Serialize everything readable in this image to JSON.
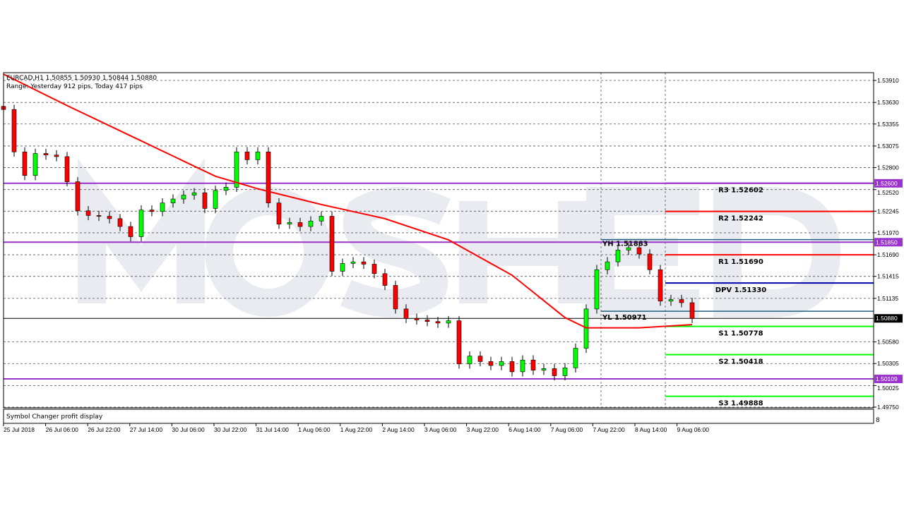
{
  "header": {
    "symbol_line": "EURCAD,H1  1.50855 1.50930 1.50844 1.50880",
    "range_line": "Range: Yesterday 912 pips, Today 417 pips"
  },
  "watermark": "MOSHED",
  "indicator_panel": {
    "label": "Symbol Changer profit display",
    "axis_mark": "8"
  },
  "colors": {
    "bull": "#00ff00",
    "bear": "#ff0000",
    "ma": "#ff0000",
    "key_level": "#9933cc",
    "resistance": "#ff0000",
    "support": "#00ff00",
    "pivot": "#0000aa",
    "yesterday": "#1f5f80",
    "current": "#000000"
  },
  "chart_data": {
    "type": "candlestick",
    "symbol": "EURCAD",
    "timeframe": "H1",
    "ylim": [
      1.4975,
      1.5391
    ],
    "grid": true,
    "y_ticks": [
      "1.53910",
      "1.53630",
      "1.53355",
      "1.53075",
      "1.52800",
      "1.52520",
      "1.52245",
      "1.51970",
      "1.51690",
      "1.51415",
      "1.51135",
      "1.50580",
      "1.50305",
      "1.50025",
      "1.49750"
    ],
    "x_ticks": [
      "25 Jul 2018",
      "26 Jul 06:00",
      "26 Jul 22:00",
      "27 Jul 14:00",
      "30 Jul 06:00",
      "30 Jul 22:00",
      "31 Jul 14:00",
      "1 Aug 06:00",
      "1 Aug 22:00",
      "2 Aug 14:00",
      "3 Aug 06:00",
      "3 Aug 22:00",
      "6 Aug 14:00",
      "7 Aug 06:00",
      "7 Aug 22:00",
      "8 Aug 14:00",
      "9 Aug 06:00"
    ],
    "closes": [
      1.5354,
      1.53,
      1.527,
      1.5298,
      1.5296,
      1.5294,
      1.5262,
      1.5225,
      1.5219,
      1.5218,
      1.5215,
      1.5205,
      1.5192,
      1.5226,
      1.5224,
      1.5235,
      1.524,
      1.5245,
      1.5248,
      1.5228,
      1.5251,
      1.5255,
      1.53,
      1.529,
      1.53,
      1.5235,
      1.5208,
      1.521,
      1.5205,
      1.5212,
      1.5218,
      1.5148,
      1.5158,
      1.516,
      1.5157,
      1.5145,
      1.513,
      1.51,
      1.5088,
      1.5086,
      1.5084,
      1.5082,
      1.5085,
      1.503,
      1.504,
      1.5033,
      1.5028,
      1.5033,
      1.502,
      1.5035,
      1.5022,
      1.5024,
      1.5015,
      1.5025,
      1.505,
      1.51,
      1.515,
      1.516,
      1.5175,
      1.5178,
      1.517,
      1.515,
      1.511,
      1.5112,
      1.5108,
      1.5088
    ],
    "moving_average": [
      [
        0,
        1.5399
      ],
      [
        6,
        1.5359
      ],
      [
        13,
        1.5314
      ],
      [
        20,
        1.5269
      ],
      [
        24,
        1.5253
      ],
      [
        30,
        1.5233
      ],
      [
        36,
        1.5215
      ],
      [
        42,
        1.5188
      ],
      [
        48,
        1.5143
      ],
      [
        53,
        1.5089
      ],
      [
        55,
        1.5076
      ],
      [
        60,
        1.5076
      ],
      [
        65,
        1.508
      ]
    ],
    "key_levels": [
      {
        "value": 1.526,
        "label": "1.52600"
      },
      {
        "value": 1.5185,
        "label": "1.51850"
      },
      {
        "value": 1.50109,
        "label": "1.50109"
      }
    ],
    "current_price": {
      "value": 1.5088,
      "label": "1.50880"
    },
    "yesterday_levels": [
      {
        "value": 1.51883,
        "label": "YH 1.51883"
      },
      {
        "value": 1.50971,
        "label": "YL 1.50971"
      }
    ],
    "pivots": [
      {
        "value": 1.52602,
        "label": "R3 1.52602",
        "kind": "key_level"
      },
      {
        "value": 1.52242,
        "label": "R2 1.52242",
        "kind": "resistance"
      },
      {
        "value": 1.5169,
        "label": "R1 1.51690",
        "kind": "resistance"
      },
      {
        "value": 1.5133,
        "label": "DPV 1.51330",
        "kind": "pivot"
      },
      {
        "value": 1.50778,
        "label": "S1 1.50778",
        "kind": "support"
      },
      {
        "value": 1.50418,
        "label": "S2 1.50418",
        "kind": "support"
      },
      {
        "value": 1.49888,
        "label": "S3 1.49888",
        "kind": "support"
      }
    ]
  }
}
